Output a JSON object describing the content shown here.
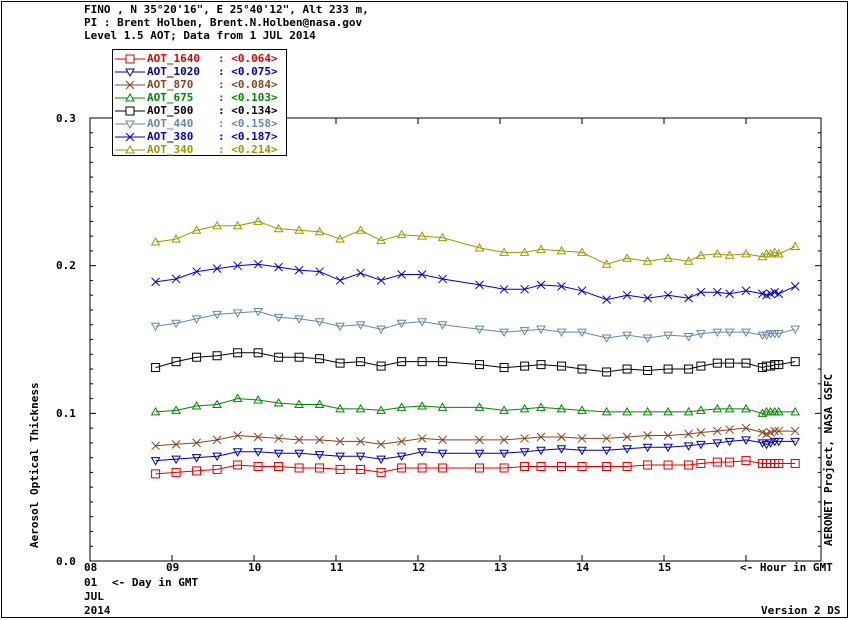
{
  "header": {
    "line1": "FINO , N 35°20'16\", E 25°40'12\", Alt 233 m,",
    "line2": "PI : Brent Holben, Brent.N.Holben@nasa.gov",
    "line3": "Level 1.5 AOT; Data from 1 JUL 2014"
  },
  "ylabel": "Aerosol Optical Thickness",
  "right_label": "AERONET Project, NASA GSFC",
  "x_hour_note": "<- Hour in GMT",
  "day_note": "<- Day in GMT",
  "date_block": {
    "day": "01",
    "month": "JUL",
    "year": "2014"
  },
  "version": "Version 2 DS",
  "yticks": [
    "0.3",
    "0.2",
    "0.1",
    "0.0"
  ],
  "xticks": [
    "08",
    "09",
    "10",
    "11",
    "12",
    "13",
    "14",
    "15"
  ],
  "chart_data": {
    "type": "line",
    "xlabel": "Hour in GMT",
    "ylabel": "Aerosol Optical Thickness",
    "xlim": [
      8,
      17.0
    ],
    "ylim": [
      0.0,
      0.3
    ],
    "x": [
      8.8,
      9.05,
      9.3,
      9.55,
      9.8,
      10.05,
      10.3,
      10.55,
      10.8,
      11.05,
      11.3,
      11.55,
      11.8,
      12.05,
      12.3,
      12.75,
      13.05,
      13.3,
      13.5,
      13.75,
      14.0,
      14.3,
      14.55,
      14.8,
      15.05,
      15.3,
      15.45,
      15.65,
      15.8,
      16.0,
      16.2,
      16.25,
      16.3,
      16.35,
      16.4,
      16.6
    ],
    "series": [
      {
        "name": "AOT_340",
        "color": "#999900",
        "marker": "triangle-up",
        "values": [
          0.216,
          0.218,
          0.224,
          0.227,
          0.227,
          0.23,
          0.225,
          0.224,
          0.223,
          0.218,
          0.224,
          0.217,
          0.221,
          0.22,
          0.219,
          0.212,
          0.209,
          0.209,
          0.211,
          0.21,
          0.209,
          0.201,
          0.205,
          0.203,
          0.205,
          0.203,
          0.207,
          0.208,
          0.207,
          0.208,
          0.206,
          0.208,
          0.208,
          0.209,
          0.208,
          0.213
        ]
      },
      {
        "name": "AOT_380",
        "color": "#0000cc",
        "marker": "x",
        "values": [
          0.189,
          0.191,
          0.196,
          0.198,
          0.2,
          0.201,
          0.199,
          0.197,
          0.196,
          0.19,
          0.195,
          0.19,
          0.194,
          0.194,
          0.191,
          0.187,
          0.184,
          0.184,
          0.187,
          0.186,
          0.183,
          0.177,
          0.18,
          0.178,
          0.18,
          0.178,
          0.182,
          0.182,
          0.181,
          0.183,
          0.181,
          0.18,
          0.181,
          0.182,
          0.181,
          0.186
        ]
      },
      {
        "name": "AOT_440",
        "color": "#6688aa",
        "marker": "triangle-down",
        "values": [
          0.159,
          0.161,
          0.164,
          0.167,
          0.168,
          0.169,
          0.165,
          0.164,
          0.162,
          0.159,
          0.16,
          0.157,
          0.161,
          0.162,
          0.16,
          0.157,
          0.155,
          0.156,
          0.157,
          0.155,
          0.155,
          0.151,
          0.153,
          0.151,
          0.153,
          0.152,
          0.154,
          0.155,
          0.155,
          0.155,
          0.153,
          0.153,
          0.154,
          0.154,
          0.154,
          0.157
        ]
      },
      {
        "name": "AOT_500",
        "color": "#000000",
        "marker": "square",
        "values": [
          0.131,
          0.135,
          0.138,
          0.139,
          0.141,
          0.141,
          0.138,
          0.138,
          0.137,
          0.134,
          0.135,
          0.132,
          0.135,
          0.135,
          0.135,
          0.133,
          0.131,
          0.132,
          0.133,
          0.132,
          0.13,
          0.128,
          0.13,
          0.129,
          0.13,
          0.13,
          0.132,
          0.134,
          0.134,
          0.134,
          0.131,
          0.132,
          0.132,
          0.133,
          0.133,
          0.135
        ]
      },
      {
        "name": "AOT_675",
        "color": "#008800",
        "marker": "triangle-up",
        "values": [
          0.101,
          0.102,
          0.105,
          0.106,
          0.11,
          0.109,
          0.107,
          0.106,
          0.106,
          0.103,
          0.103,
          0.102,
          0.104,
          0.105,
          0.104,
          0.104,
          0.102,
          0.103,
          0.104,
          0.103,
          0.102,
          0.101,
          0.101,
          0.101,
          0.101,
          0.101,
          0.102,
          0.103,
          0.103,
          0.103,
          0.1,
          0.101,
          0.101,
          0.101,
          0.101,
          0.101
        ]
      },
      {
        "name": "AOT_870",
        "color": "#884422",
        "marker": "x",
        "values": [
          0.078,
          0.079,
          0.08,
          0.082,
          0.085,
          0.084,
          0.083,
          0.082,
          0.082,
          0.081,
          0.081,
          0.079,
          0.081,
          0.083,
          0.082,
          0.082,
          0.082,
          0.083,
          0.084,
          0.084,
          0.083,
          0.083,
          0.084,
          0.085,
          0.085,
          0.086,
          0.087,
          0.088,
          0.089,
          0.09,
          0.087,
          0.086,
          0.087,
          0.088,
          0.088,
          0.088
        ]
      },
      {
        "name": "AOT_1020",
        "color": "#0000aa",
        "marker": "triangle-down",
        "values": [
          0.068,
          0.069,
          0.07,
          0.071,
          0.074,
          0.074,
          0.073,
          0.073,
          0.072,
          0.071,
          0.071,
          0.069,
          0.071,
          0.074,
          0.073,
          0.073,
          0.073,
          0.074,
          0.075,
          0.076,
          0.075,
          0.075,
          0.076,
          0.077,
          0.077,
          0.078,
          0.079,
          0.08,
          0.081,
          0.082,
          0.08,
          0.079,
          0.08,
          0.081,
          0.081,
          0.081
        ]
      },
      {
        "name": "AOT_1640",
        "color": "#dd0000",
        "marker": "square",
        "values": [
          0.059,
          0.06,
          0.061,
          0.062,
          0.065,
          0.064,
          0.064,
          0.063,
          0.063,
          0.062,
          0.062,
          0.06,
          0.063,
          0.063,
          0.063,
          0.063,
          0.063,
          0.064,
          0.064,
          0.064,
          0.064,
          0.064,
          0.064,
          0.065,
          0.065,
          0.065,
          0.066,
          0.067,
          0.067,
          0.068,
          0.066,
          0.066,
          0.066,
          0.066,
          0.066,
          0.066
        ]
      }
    ],
    "legend": [
      {
        "name": "AOT_1640",
        "value": ": <0.064>",
        "color": "#dd0000",
        "marker": "square"
      },
      {
        "name": "AOT_1020",
        "value": ": <0.075>",
        "color": "#0000aa",
        "marker": "triangle-down"
      },
      {
        "name": "AOT_870",
        "value": ": <0.084>",
        "color": "#884422",
        "marker": "x"
      },
      {
        "name": "AOT_675",
        "value": ": <0.103>",
        "color": "#008800",
        "marker": "triangle-up"
      },
      {
        "name": "AOT_500",
        "value": ": <0.134>",
        "color": "#000000",
        "marker": "square"
      },
      {
        "name": "AOT_440",
        "value": ": <0.158>",
        "color": "#6688aa",
        "marker": "triangle-down"
      },
      {
        "name": "AOT_380",
        "value": ": <0.187>",
        "color": "#0000cc",
        "marker": "x"
      },
      {
        "name": "AOT_340",
        "value": ": <0.214>",
        "color": "#999900",
        "marker": "triangle-up"
      }
    ],
    "legend_position": "top-left"
  }
}
